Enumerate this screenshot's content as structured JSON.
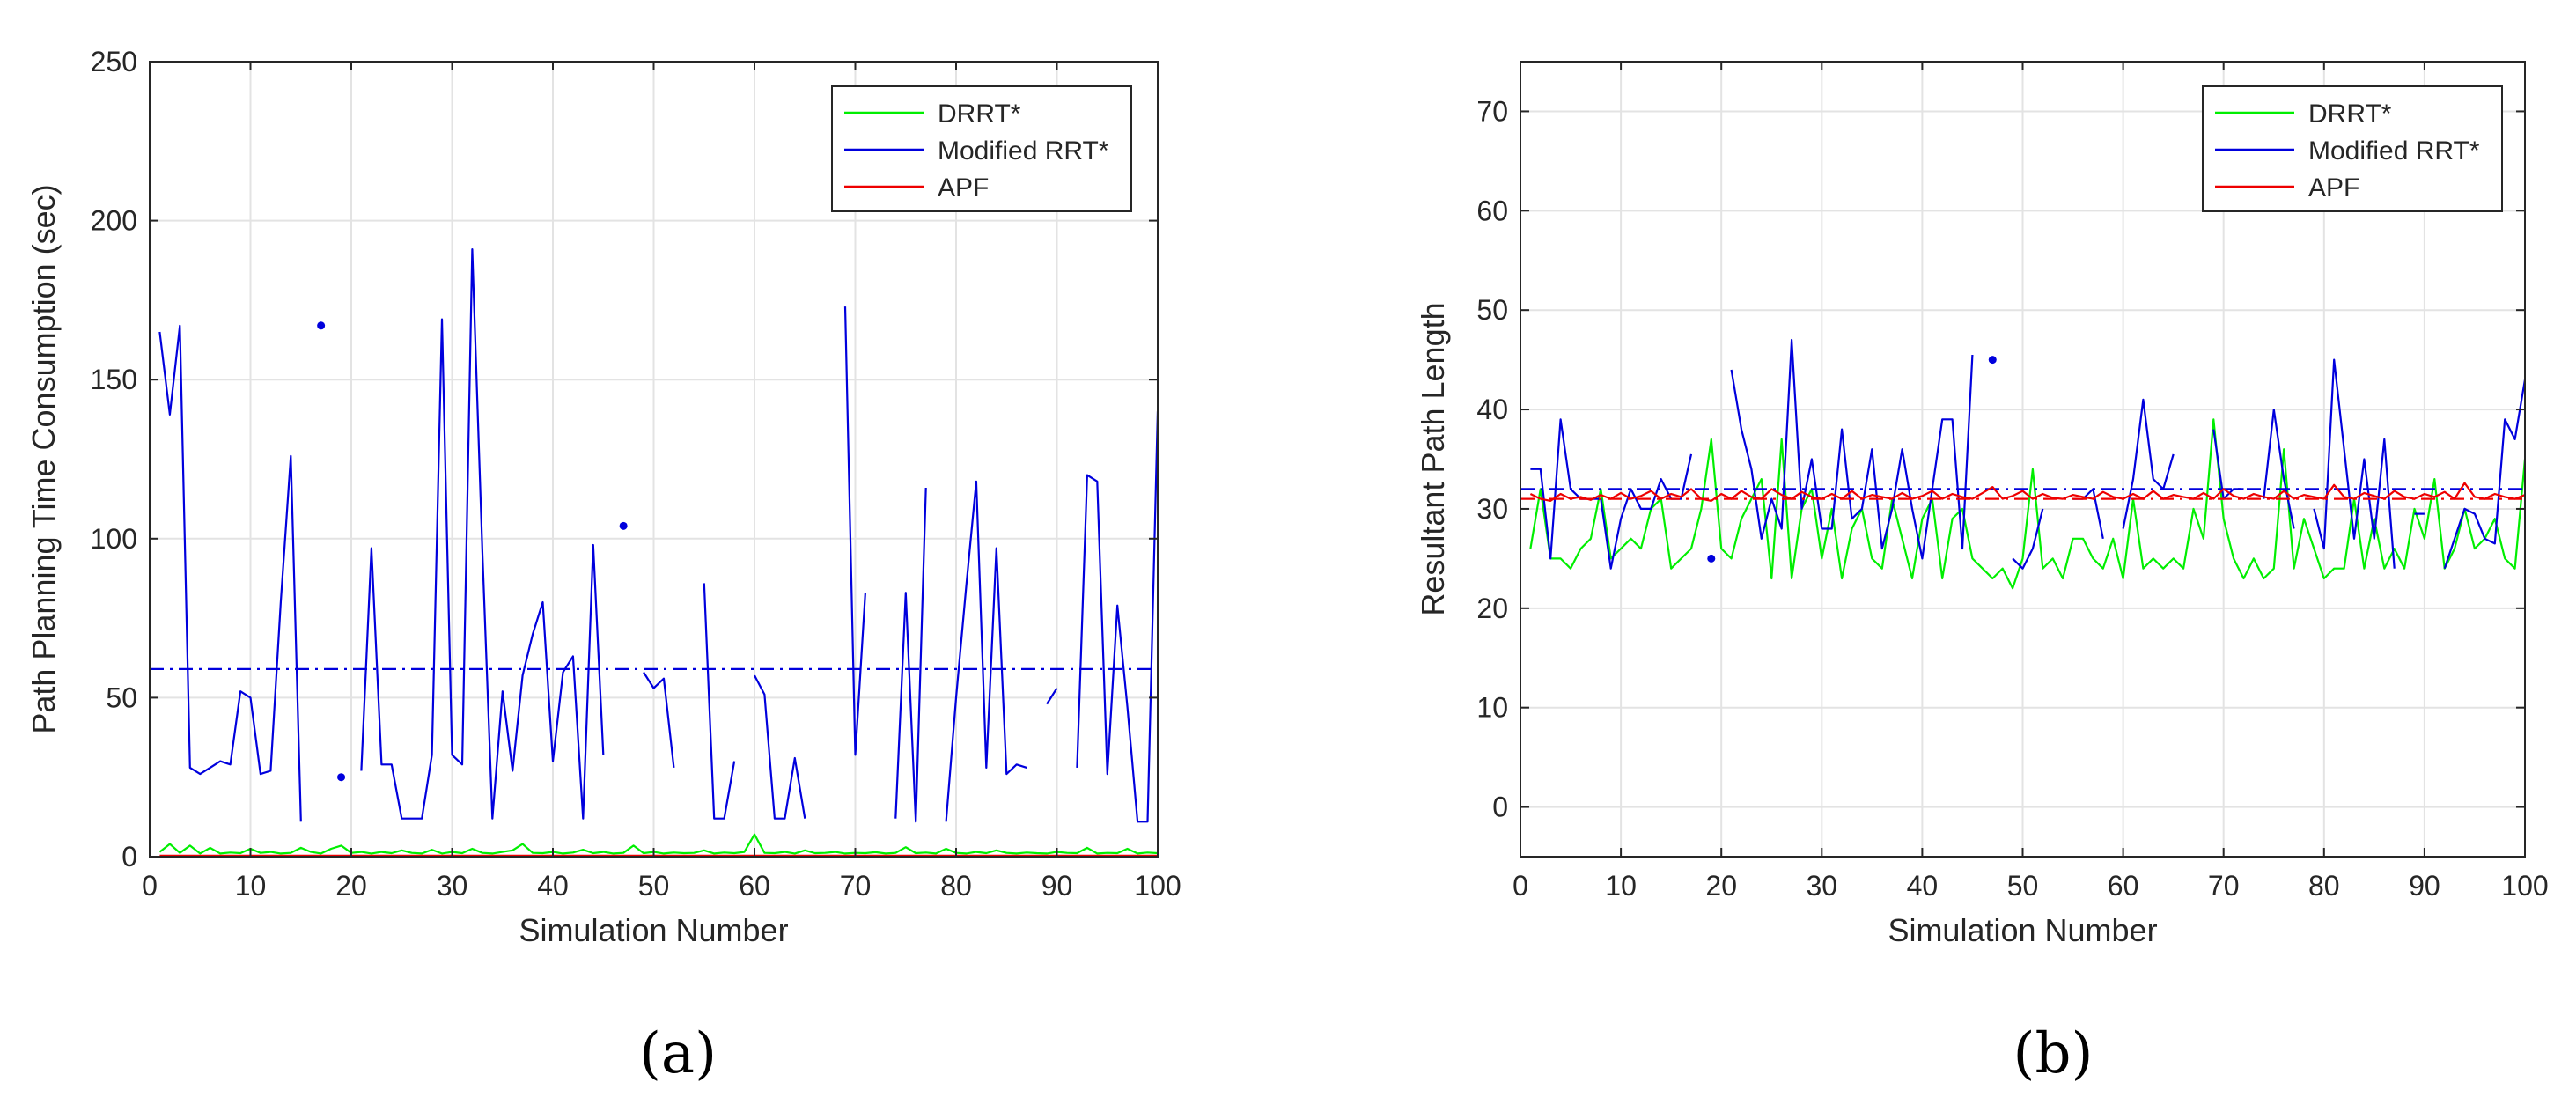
{
  "panel_labels": [
    "(a)",
    "(b)"
  ],
  "chart_data": [
    {
      "type": "line",
      "xlabel": "Simulation Number",
      "ylabel": "Path Planning Time Consumption (sec)",
      "xlim": [
        0,
        100
      ],
      "ylim": [
        0,
        250
      ],
      "xticks": [
        0,
        10,
        20,
        30,
        40,
        50,
        60,
        70,
        80,
        90,
        100
      ],
      "yticks": [
        0,
        50,
        100,
        150,
        200,
        250
      ],
      "grid": true,
      "legend": "top-right",
      "series": [
        {
          "name": "DRRT*",
          "color": "#00ee00",
          "x": [
            1,
            2,
            3,
            4,
            5,
            6,
            7,
            8,
            9,
            10,
            11,
            12,
            13,
            14,
            15,
            16,
            17,
            18,
            19,
            20,
            21,
            22,
            23,
            24,
            25,
            26,
            27,
            28,
            29,
            30,
            31,
            32,
            33,
            34,
            35,
            36,
            37,
            38,
            39,
            40,
            41,
            42,
            43,
            44,
            45,
            46,
            47,
            48,
            49,
            50,
            51,
            52,
            53,
            54,
            55,
            56,
            57,
            58,
            59,
            60,
            61,
            62,
            63,
            64,
            65,
            66,
            67,
            68,
            69,
            70,
            71,
            72,
            73,
            74,
            75,
            76,
            77,
            78,
            79,
            80,
            81,
            82,
            83,
            84,
            85,
            86,
            87,
            88,
            89,
            90,
            91,
            92,
            93,
            94,
            95,
            96,
            97,
            98,
            99,
            100
          ],
          "values": [
            1.5,
            4,
            1.2,
            3.5,
            1,
            2.8,
            1,
            1.3,
            1.1,
            2.5,
            1.2,
            1.5,
            1,
            1.2,
            2.8,
            1.5,
            1,
            2.5,
            3.5,
            1.2,
            1.5,
            1,
            1.5,
            1.1,
            2,
            1.2,
            1,
            2.2,
            1,
            1.5,
            1.1,
            2.5,
            1.2,
            1,
            1.5,
            2,
            4,
            1.2,
            1.1,
            1.5,
            1,
            1.3,
            2.2,
            1.1,
            1.5,
            1,
            1.2,
            3.5,
            1.1,
            1.5,
            1,
            1.3,
            1.1,
            1.2,
            2,
            1,
            1.3,
            1.1,
            1.5,
            7,
            1.2,
            1.1,
            1.5,
            1,
            2,
            1.1,
            1.2,
            1.5,
            1,
            1.2,
            1.1,
            1.4,
            1,
            1.2,
            3,
            1.1,
            1.3,
            1,
            2.5,
            1.2,
            1,
            1.5,
            1.1,
            2,
            1.2,
            1,
            1.3,
            1.1,
            1,
            1.5,
            1.2,
            1.1,
            2.8,
            1,
            1.2,
            1.1,
            2.5,
            1,
            1.3,
            1.1
          ]
        },
        {
          "name": "Modified RRT*",
          "color": "#0000dd",
          "x": [
            1,
            2,
            3,
            4,
            5,
            6,
            7,
            8,
            9,
            10,
            11,
            12,
            13,
            14,
            15,
            null,
            17,
            null,
            19,
            null,
            21,
            22,
            23,
            24,
            25,
            26,
            27,
            28,
            29,
            30,
            31,
            32,
            33,
            34,
            35,
            36,
            37,
            38,
            39,
            40,
            41,
            42,
            43,
            44,
            45,
            null,
            47,
            null,
            49,
            50,
            51,
            52,
            null,
            null,
            55,
            56,
            57,
            58,
            null,
            60,
            61,
            62,
            63,
            64,
            65,
            null,
            null,
            null,
            69,
            70,
            71,
            null,
            null,
            74,
            75,
            76,
            77,
            78,
            79,
            80,
            81,
            82,
            83,
            84,
            85,
            86,
            87,
            null,
            89,
            90,
            null,
            92,
            93,
            94,
            95,
            96,
            97,
            98,
            99,
            100
          ],
          "values": [
            165,
            139,
            167,
            28,
            26,
            28,
            30,
            29,
            52,
            50,
            26,
            27,
            80,
            126,
            11,
            null,
            167,
            null,
            25,
            null,
            27,
            97,
            29,
            29,
            12,
            12,
            12,
            32,
            169,
            32,
            29,
            191,
            96,
            12,
            52,
            27,
            57,
            70,
            80,
            30,
            58,
            63,
            12,
            98,
            32,
            null,
            104,
            null,
            58,
            53,
            56,
            28,
            null,
            null,
            86,
            12,
            12,
            30,
            null,
            57,
            51,
            12,
            12,
            31,
            12,
            null,
            null,
            null,
            173,
            32,
            83,
            null,
            null,
            12,
            83,
            11,
            116,
            null,
            11,
            50,
            85,
            118,
            28,
            97,
            26,
            29,
            28,
            null,
            48,
            53,
            null,
            28,
            120,
            118,
            26,
            79,
            47,
            11,
            11,
            140
          ],
          "mean": 59
        },
        {
          "name": "APF",
          "color": "#ee0000",
          "x": [
            1,
            100
          ],
          "values": [
            0.3,
            0.3
          ]
        }
      ]
    },
    {
      "type": "line",
      "xlabel": "Simulation Number",
      "ylabel": "Resultant Path Length",
      "xlim": [
        0,
        100
      ],
      "ylim": [
        -5,
        75
      ],
      "xticks": [
        0,
        10,
        20,
        30,
        40,
        50,
        60,
        70,
        80,
        90,
        100
      ],
      "yticks": [
        0,
        10,
        20,
        30,
        40,
        50,
        60,
        70
      ],
      "grid": true,
      "legend": "top-right",
      "series": [
        {
          "name": "DRRT*",
          "color": "#00ee00",
          "x": [
            1,
            2,
            3,
            4,
            5,
            6,
            7,
            8,
            9,
            10,
            11,
            12,
            13,
            14,
            15,
            16,
            17,
            18,
            19,
            20,
            21,
            22,
            23,
            24,
            25,
            26,
            27,
            28,
            29,
            30,
            31,
            32,
            33,
            34,
            35,
            36,
            37,
            38,
            39,
            40,
            41,
            42,
            43,
            44,
            45,
            46,
            47,
            48,
            49,
            50,
            51,
            52,
            53,
            54,
            55,
            56,
            57,
            58,
            59,
            60,
            61,
            62,
            63,
            64,
            65,
            66,
            67,
            68,
            69,
            70,
            71,
            72,
            73,
            74,
            75,
            76,
            77,
            78,
            79,
            80,
            81,
            82,
            83,
            84,
            85,
            86,
            87,
            88,
            89,
            90,
            91,
            92,
            93,
            94,
            95,
            96,
            97,
            98,
            99,
            100
          ],
          "values": [
            26,
            32,
            25,
            25,
            24,
            26,
            27,
            32,
            25,
            26,
            27,
            26,
            30,
            31,
            24,
            25,
            26,
            30,
            37,
            26,
            25,
            29,
            31,
            33,
            23,
            37,
            23,
            30,
            32,
            25,
            30,
            23,
            28,
            30,
            25,
            24,
            31,
            27,
            23,
            29,
            31,
            23,
            29,
            30,
            25,
            24,
            23,
            24,
            22,
            25,
            34,
            24,
            25,
            23,
            27,
            27,
            25,
            24,
            27,
            23,
            31,
            24,
            25,
            24,
            25,
            24,
            30,
            27,
            39,
            29,
            25,
            23,
            25,
            23,
            24,
            36,
            24,
            29,
            26,
            23,
            24,
            24,
            31,
            24,
            29,
            24,
            26,
            24,
            30,
            27,
            33,
            24,
            26,
            30,
            26,
            27,
            29,
            25,
            24,
            35
          ]
        },
        {
          "name": "Modified RRT*",
          "color": "#0000dd",
          "x": [
            1,
            2,
            3,
            4,
            5,
            6,
            7,
            8,
            9,
            10,
            11,
            12,
            13,
            14,
            15,
            16,
            17,
            null,
            19,
            null,
            21,
            22,
            23,
            24,
            25,
            26,
            27,
            28,
            29,
            30,
            31,
            32,
            33,
            34,
            35,
            36,
            37,
            38,
            39,
            40,
            41,
            42,
            43,
            44,
            45,
            null,
            47,
            null,
            49,
            50,
            51,
            52,
            null,
            null,
            55,
            56,
            57,
            58,
            null,
            60,
            61,
            62,
            63,
            64,
            65,
            null,
            null,
            null,
            69,
            70,
            71,
            72,
            null,
            74,
            75,
            76,
            77,
            null,
            79,
            80,
            81,
            82,
            83,
            84,
            85,
            86,
            87,
            null,
            89,
            90,
            null,
            92,
            93,
            94,
            95,
            96,
            97,
            98,
            99,
            100
          ],
          "values": [
            34,
            34,
            25,
            39,
            32,
            31,
            31,
            31,
            24,
            29,
            32,
            30,
            30,
            33,
            31,
            31,
            35.5,
            null,
            25,
            null,
            44,
            38,
            34,
            27,
            31,
            28,
            47,
            30,
            35,
            28,
            28,
            38,
            29,
            30,
            36,
            26,
            30,
            36,
            30,
            25,
            32,
            39,
            39,
            26,
            45.5,
            null,
            45,
            null,
            25,
            24,
            26,
            30,
            null,
            null,
            31,
            31,
            32,
            27,
            null,
            28,
            33,
            41,
            33,
            32,
            35.5,
            null,
            null,
            null,
            38,
            31,
            32,
            32,
            null,
            31,
            40,
            33,
            28,
            null,
            30,
            26,
            45,
            36,
            27,
            35,
            27,
            37,
            24,
            null,
            29.5,
            29.5,
            null,
            24,
            27,
            30,
            29.5,
            27,
            26.5,
            39,
            37,
            43
          ],
          "mean": 32
        },
        {
          "name": "APF",
          "color": "#ee0000",
          "x": [
            1,
            2,
            3,
            4,
            5,
            6,
            7,
            8,
            9,
            10,
            11,
            12,
            13,
            14,
            15,
            16,
            17,
            18,
            19,
            20,
            21,
            22,
            23,
            24,
            25,
            26,
            27,
            28,
            29,
            30,
            31,
            32,
            33,
            34,
            35,
            36,
            37,
            38,
            39,
            40,
            41,
            42,
            43,
            44,
            45,
            46,
            47,
            48,
            49,
            50,
            51,
            52,
            53,
            54,
            55,
            56,
            57,
            58,
            59,
            60,
            61,
            62,
            63,
            64,
            65,
            66,
            67,
            68,
            69,
            70,
            71,
            72,
            73,
            74,
            75,
            76,
            77,
            78,
            79,
            80,
            81,
            82,
            83,
            84,
            85,
            86,
            87,
            88,
            89,
            90,
            91,
            92,
            93,
            94,
            95,
            96,
            97,
            98,
            99,
            100
          ],
          "values": [
            31.5,
            31,
            30.8,
            31.5,
            31,
            31.2,
            30.9,
            31.4,
            31,
            31.6,
            31,
            31.3,
            31.8,
            31,
            31.5,
            31.2,
            32,
            31,
            30.8,
            31.5,
            31,
            31.8,
            31.2,
            31,
            32,
            31.4,
            31,
            31.7,
            31.2,
            31,
            31.5,
            31,
            31.8,
            31,
            31.4,
            31.2,
            31,
            31.6,
            31,
            31.3,
            31.8,
            31,
            31.5,
            31.2,
            31,
            31.6,
            32.2,
            31,
            31.3,
            31.8,
            31,
            31.5,
            31.1,
            31,
            31.4,
            31.2,
            31,
            31.7,
            31.2,
            31,
            31.5,
            31,
            31.8,
            31,
            31.4,
            31.2,
            31,
            31.6,
            31,
            32,
            31.3,
            31,
            31.5,
            31.2,
            31,
            31.8,
            31,
            31.4,
            31.2,
            31,
            32.4,
            31.2,
            31,
            31.6,
            31.3,
            31,
            31.8,
            31.2,
            31,
            31.5,
            31.2,
            31.7,
            31,
            32.6,
            31.2,
            31,
            31.5,
            31.2,
            31,
            31.4
          ],
          "mean": 31
        }
      ]
    }
  ]
}
